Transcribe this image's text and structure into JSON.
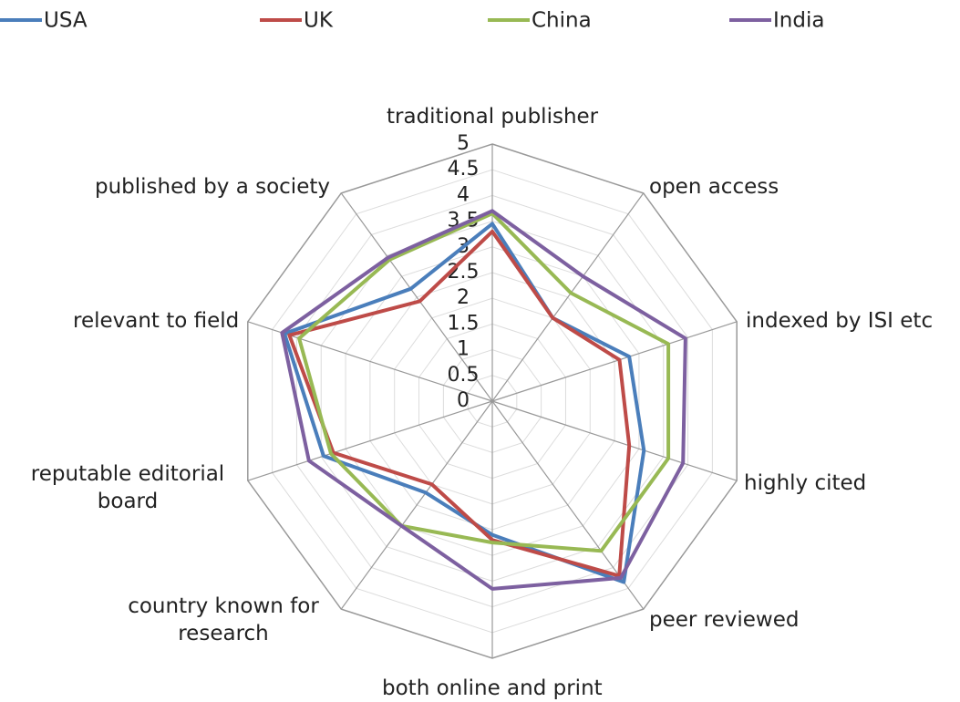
{
  "chart_data": {
    "type": "radar",
    "categories": [
      "traditional publisher",
      "open access",
      "indexed by ISI etc",
      "highly cited",
      "peer reviewed",
      "both online and print",
      "country known for research",
      "reputable editorial board",
      "relevant to field",
      "published by a society"
    ],
    "series": [
      {
        "name": "USA",
        "color": "#4a7ebb",
        "values": [
          3.45,
          2.0,
          2.8,
          3.1,
          4.35,
          2.6,
          2.2,
          3.45,
          4.25,
          2.7
        ]
      },
      {
        "name": "UK",
        "color": "#be4b48",
        "values": [
          3.3,
          2.0,
          2.6,
          2.8,
          4.2,
          2.7,
          2.0,
          3.25,
          4.15,
          2.4
        ]
      },
      {
        "name": "China",
        "color": "#98b954",
        "values": [
          3.65,
          2.6,
          3.6,
          3.6,
          3.6,
          2.75,
          3.0,
          3.3,
          3.95,
          3.4
        ]
      },
      {
        "name": "India",
        "color": "#7d60a0",
        "values": [
          3.7,
          3.0,
          3.95,
          3.9,
          4.25,
          3.65,
          3.0,
          3.75,
          4.3,
          3.45
        ]
      }
    ],
    "ylim": [
      0,
      5
    ],
    "yticks": [
      0,
      0.5,
      1,
      1.5,
      2,
      2.5,
      3,
      3.5,
      4,
      4.5,
      5
    ],
    "grid": true
  }
}
